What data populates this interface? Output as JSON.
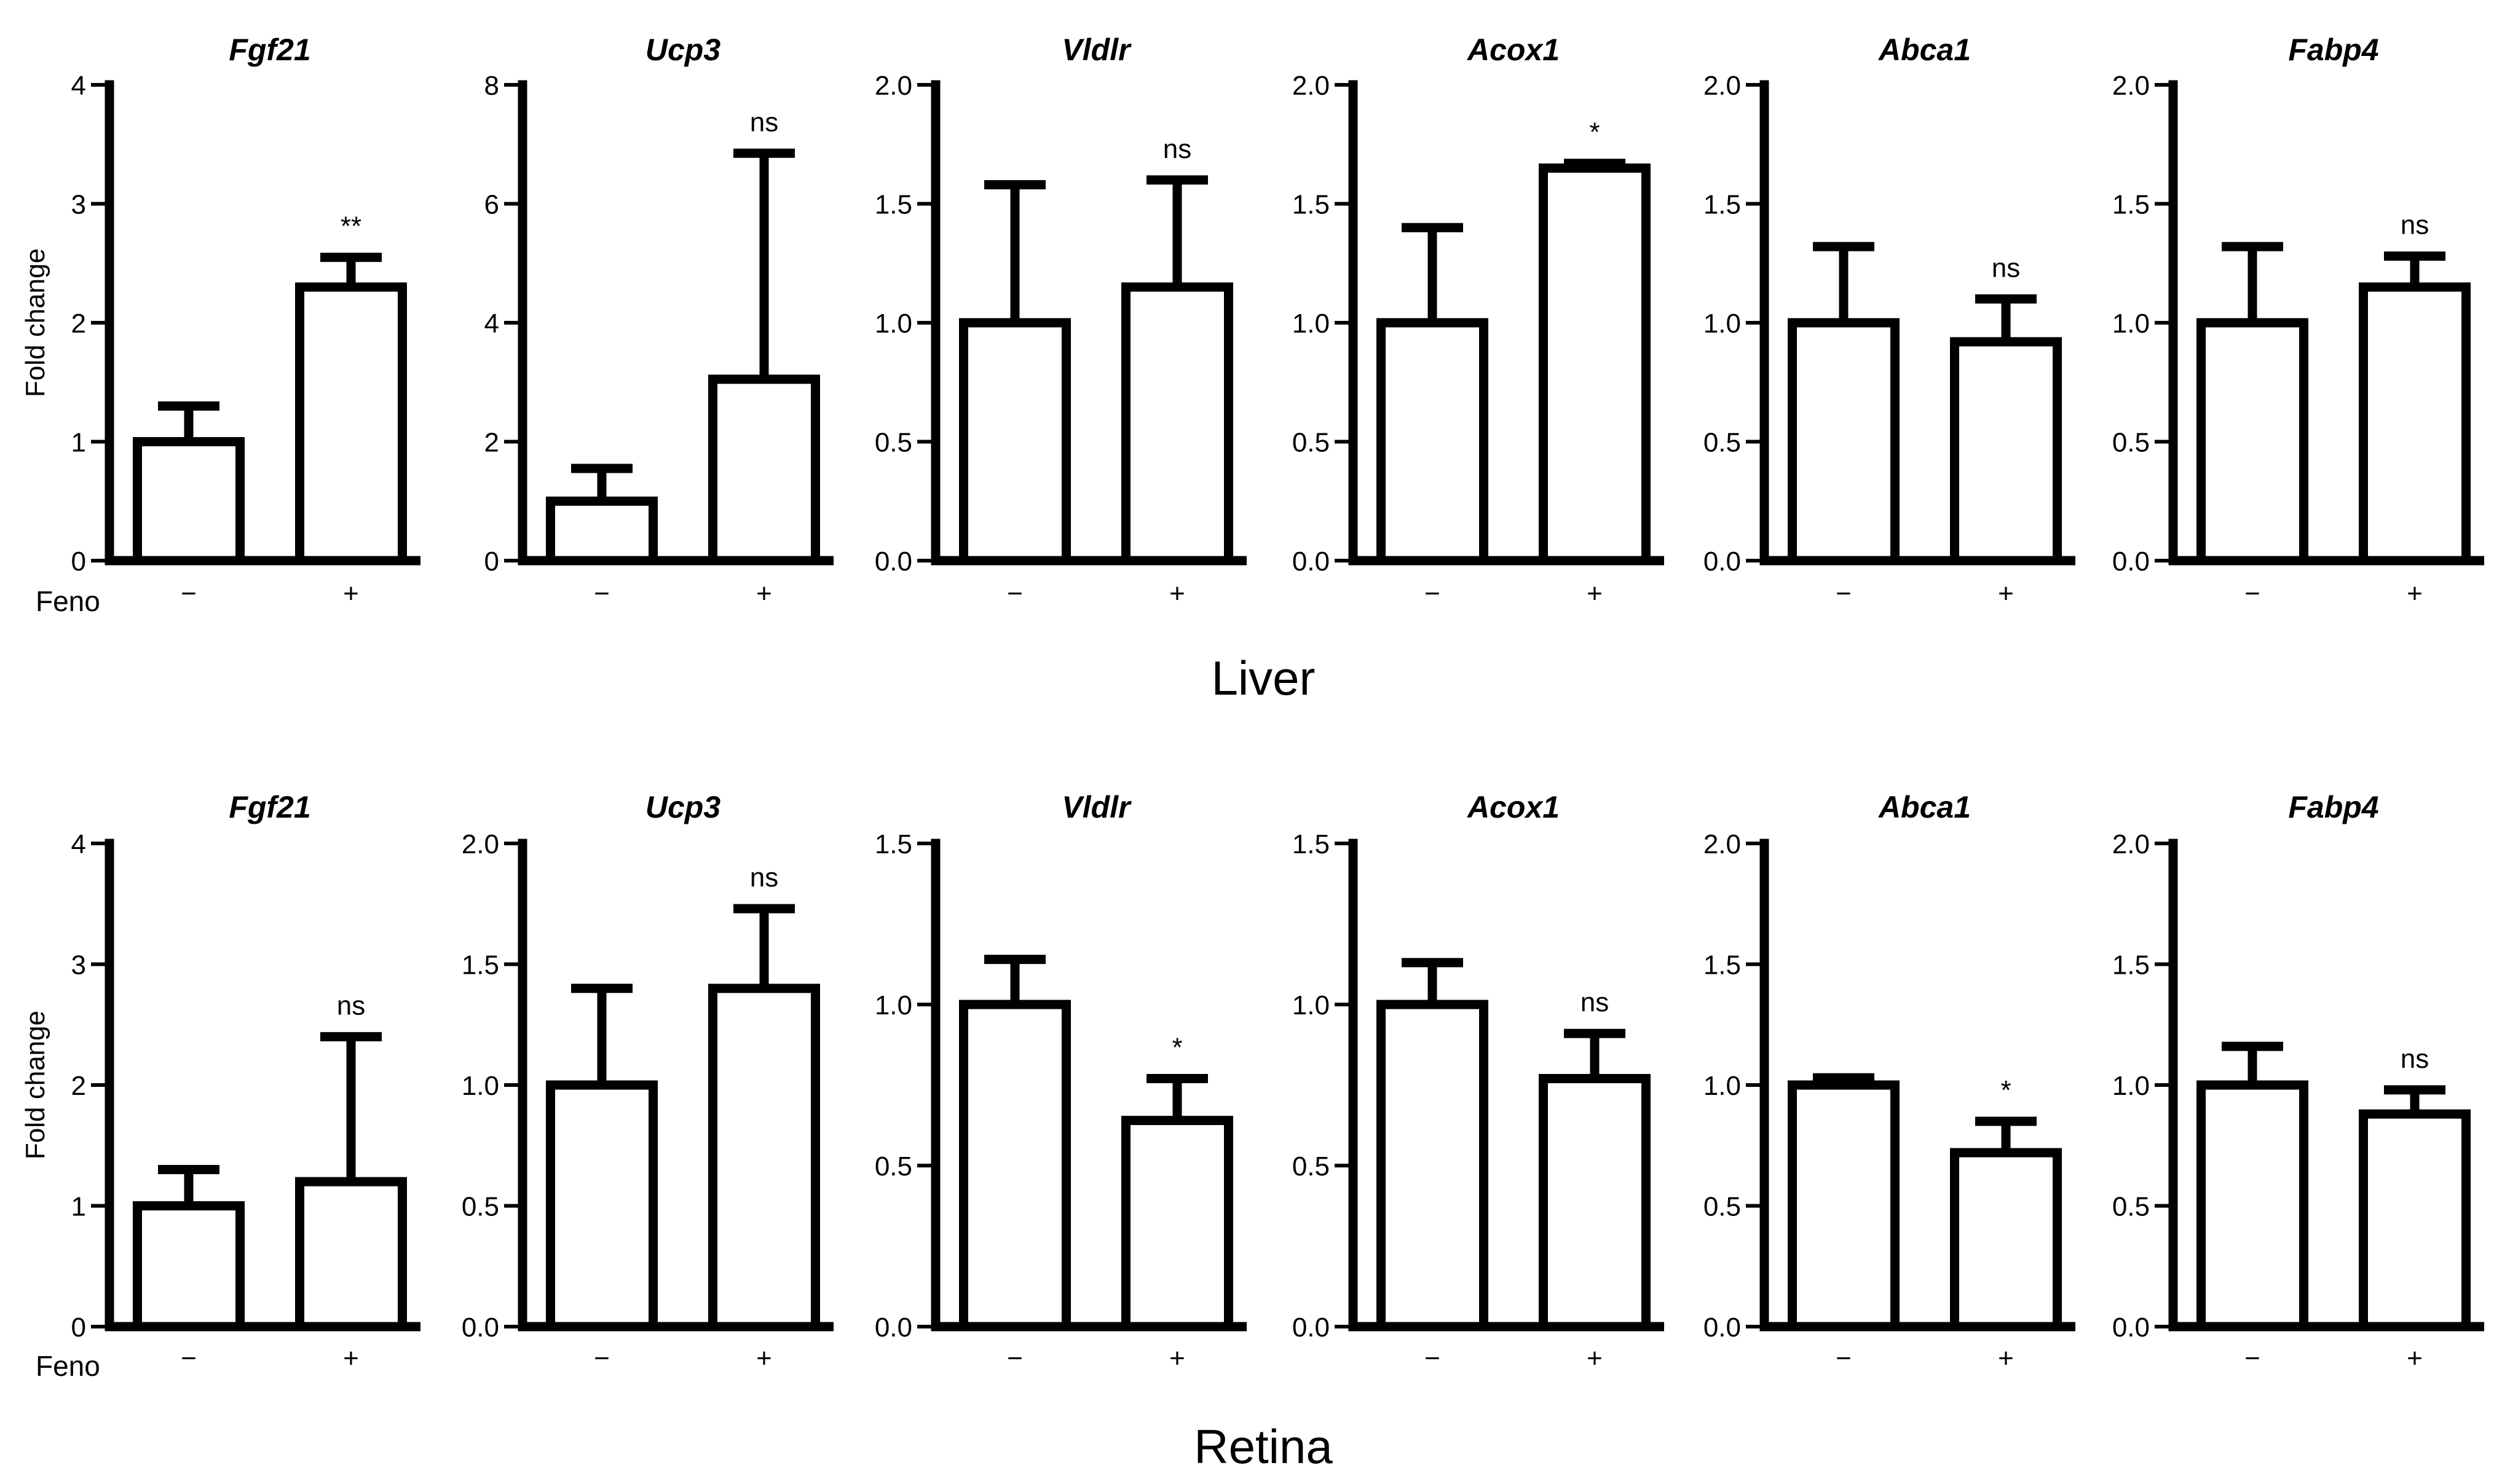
{
  "figure": {
    "treatment_label": "Feno",
    "categories": [
      "−",
      "+"
    ],
    "colors": {
      "stroke": "#000000",
      "bar_fill": "#ffffff",
      "background": "#ffffff"
    }
  },
  "chart_data": [
    {
      "type": "bar",
      "section": "Liver",
      "row": 0,
      "ylabel": "Fold change",
      "panels": [
        {
          "title": "Fgf21",
          "yticks": [
            "0",
            "1",
            "2",
            "3",
            "4"
          ],
          "ylim": [
            0,
            4
          ],
          "categories": [
            "−",
            "+"
          ],
          "values": [
            1.0,
            2.3
          ],
          "errors": [
            0.3,
            0.25
          ],
          "significance": "**"
        },
        {
          "title": "Ucp3",
          "yticks": [
            "0",
            "2",
            "4",
            "6",
            "8"
          ],
          "ylim": [
            0,
            8
          ],
          "categories": [
            "−",
            "+"
          ],
          "values": [
            1.0,
            3.05
          ],
          "errors": [
            0.55,
            3.8
          ],
          "significance": "ns"
        },
        {
          "title": "Vldlr",
          "yticks": [
            "0.0",
            "0.5",
            "1.0",
            "1.5",
            "2.0"
          ],
          "ylim": [
            0,
            2
          ],
          "categories": [
            "−",
            "+"
          ],
          "values": [
            1.0,
            1.15
          ],
          "errors": [
            0.58,
            0.45
          ],
          "significance": "ns"
        },
        {
          "title": "Acox1",
          "yticks": [
            "0.0",
            "0.5",
            "1.0",
            "1.5",
            "2.0"
          ],
          "ylim": [
            0,
            2
          ],
          "categories": [
            "−",
            "+"
          ],
          "values": [
            1.0,
            1.65
          ],
          "errors": [
            0.4,
            0.02
          ],
          "significance": "*"
        },
        {
          "title": "Abca1",
          "yticks": [
            "0.0",
            "0.5",
            "1.0",
            "1.5",
            "2.0"
          ],
          "ylim": [
            0,
            2
          ],
          "categories": [
            "−",
            "+"
          ],
          "values": [
            1.0,
            0.92
          ],
          "errors": [
            0.32,
            0.18
          ],
          "significance": "ns"
        },
        {
          "title": "Fabp4",
          "yticks": [
            "0.0",
            "0.5",
            "1.0",
            "1.5",
            "2.0"
          ],
          "ylim": [
            0,
            2
          ],
          "categories": [
            "−",
            "+"
          ],
          "values": [
            1.0,
            1.15
          ],
          "errors": [
            0.32,
            0.13
          ],
          "significance": "ns"
        }
      ]
    },
    {
      "type": "bar",
      "section": "Retina",
      "row": 1,
      "ylabel": "Fold change",
      "panels": [
        {
          "title": "Fgf21",
          "yticks": [
            "0",
            "1",
            "2",
            "3",
            "4"
          ],
          "ylim": [
            0,
            4
          ],
          "categories": [
            "−",
            "+"
          ],
          "values": [
            1.0,
            1.2
          ],
          "errors": [
            0.3,
            1.2
          ],
          "significance": "ns"
        },
        {
          "title": "Ucp3",
          "yticks": [
            "0.0",
            "0.5",
            "1.0",
            "1.5",
            "2.0"
          ],
          "ylim": [
            0,
            2
          ],
          "categories": [
            "−",
            "+"
          ],
          "values": [
            1.0,
            1.4
          ],
          "errors": [
            0.4,
            0.33
          ],
          "significance": "ns"
        },
        {
          "title": "Vldlr",
          "yticks": [
            "0.0",
            "0.5",
            "1.0",
            "1.5"
          ],
          "ylim": [
            0,
            1.5
          ],
          "categories": [
            "−",
            "+"
          ],
          "values": [
            1.0,
            0.64
          ],
          "errors": [
            0.14,
            0.13
          ],
          "significance": "*"
        },
        {
          "title": "Acox1",
          "yticks": [
            "0.0",
            "0.5",
            "1.0",
            "1.5"
          ],
          "ylim": [
            0,
            1.5
          ],
          "categories": [
            "−",
            "+"
          ],
          "values": [
            1.0,
            0.77
          ],
          "errors": [
            0.13,
            0.14
          ],
          "significance": "ns"
        },
        {
          "title": "Abca1",
          "yticks": [
            "0.0",
            "0.5",
            "1.0",
            "1.5",
            "2.0"
          ],
          "ylim": [
            0,
            2
          ],
          "categories": [
            "−",
            "+"
          ],
          "values": [
            1.0,
            0.72
          ],
          "errors": [
            0.03,
            0.13
          ],
          "significance": "*"
        },
        {
          "title": "Fabp4",
          "yticks": [
            "0.0",
            "0.5",
            "1.0",
            "1.5",
            "2.0"
          ],
          "ylim": [
            0,
            2
          ],
          "categories": [
            "−",
            "+"
          ],
          "values": [
            1.0,
            0.88
          ],
          "errors": [
            0.16,
            0.1
          ],
          "significance": "ns"
        }
      ]
    }
  ]
}
